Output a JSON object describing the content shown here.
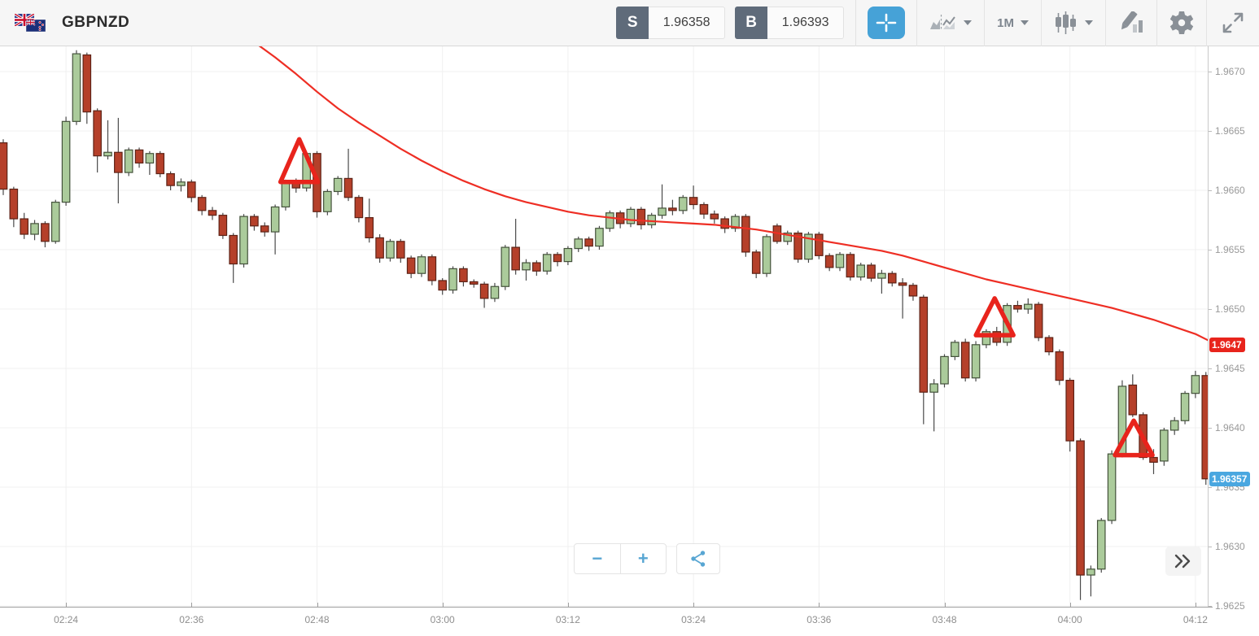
{
  "header": {
    "symbol": "GBPNZD",
    "sell": {
      "label": "S",
      "price": "1.96358"
    },
    "buy": {
      "label": "B",
      "price": "1.96393"
    },
    "interval": "1M"
  },
  "controls": {
    "zoom_out": "−",
    "zoom_in": "+"
  },
  "colors": {
    "up_fill": "#abcb9b",
    "up_border": "#44523b",
    "down_fill": "#b5402a",
    "down_border": "#5d2317",
    "wick": "#4a4a4a",
    "ma_line": "#ee2e24",
    "marker": "#e8241c",
    "tag_ma_bg": "#e8241c",
    "tag_last_bg": "#4aa7e0",
    "grid": "#f0f0f0",
    "accent_blue": "#46a2d7"
  },
  "chart_data": {
    "type": "candlestick",
    "symbol": "GBPNZD",
    "interval": "1M",
    "start_time": "02:18",
    "minutes_per_candle": 1,
    "price_base": 1.96,
    "unit": 0.0001,
    "price_ticks": [
      "1.9670",
      "1.9665",
      "1.9660",
      "1.9655",
      "1.9650",
      "1.9645",
      "1.9640",
      "1.9635",
      "1.9630",
      "1.9625"
    ],
    "time_ticks": [
      {
        "label": "02:24",
        "index": 6
      },
      {
        "label": "02:36",
        "index": 18
      },
      {
        "label": "02:48",
        "index": 30
      },
      {
        "label": "03:00",
        "index": 42
      },
      {
        "label": "03:12",
        "index": 54
      },
      {
        "label": "03:24",
        "index": 66
      },
      {
        "label": "03:36",
        "index": 78
      },
      {
        "label": "03:48",
        "index": 90
      },
      {
        "label": "04:00",
        "index": 102
      },
      {
        "label": "04:12",
        "index": 114
      }
    ],
    "candles": [
      [
        64.0,
        64.3,
        59.6,
        60.1
      ],
      [
        60.1,
        60.3,
        56.9,
        57.6
      ],
      [
        57.6,
        58.1,
        55.9,
        56.3
      ],
      [
        56.3,
        57.5,
        55.8,
        57.2
      ],
      [
        57.2,
        57.4,
        55.2,
        55.7
      ],
      [
        55.7,
        59.2,
        55.5,
        59.0
      ],
      [
        59.0,
        66.2,
        58.7,
        65.8
      ],
      [
        65.8,
        71.8,
        65.5,
        71.5
      ],
      [
        71.4,
        71.6,
        65.6,
        66.6
      ],
      [
        66.7,
        66.9,
        61.5,
        62.9
      ],
      [
        62.9,
        65.9,
        62.6,
        63.2
      ],
      [
        63.2,
        66.1,
        58.9,
        61.5
      ],
      [
        61.5,
        63.6,
        61.2,
        63.4
      ],
      [
        63.4,
        63.6,
        61.9,
        62.3
      ],
      [
        62.3,
        63.3,
        61.3,
        63.1
      ],
      [
        63.1,
        63.3,
        61.1,
        61.4
      ],
      [
        61.4,
        61.6,
        60.0,
        60.4
      ],
      [
        60.4,
        61.0,
        59.9,
        60.7
      ],
      [
        60.7,
        60.9,
        59.0,
        59.4
      ],
      [
        59.4,
        59.6,
        57.9,
        58.3
      ],
      [
        58.3,
        58.6,
        57.5,
        57.9
      ],
      [
        57.9,
        58.1,
        55.9,
        56.2
      ],
      [
        56.2,
        56.4,
        52.2,
        53.8
      ],
      [
        53.8,
        58.0,
        53.5,
        57.8
      ],
      [
        57.8,
        58.0,
        56.6,
        57.0
      ],
      [
        57.0,
        57.3,
        56.1,
        56.5
      ],
      [
        56.5,
        58.8,
        54.6,
        58.6
      ],
      [
        58.6,
        60.9,
        58.3,
        60.8
      ],
      [
        60.8,
        61.0,
        59.8,
        60.2
      ],
      [
        60.2,
        63.2,
        59.9,
        63.1
      ],
      [
        63.1,
        63.3,
        57.7,
        58.2
      ],
      [
        58.2,
        60.1,
        57.9,
        59.9
      ],
      [
        59.9,
        61.2,
        59.6,
        61.0
      ],
      [
        61.0,
        63.5,
        59.1,
        59.4
      ],
      [
        59.4,
        59.6,
        57.3,
        57.7
      ],
      [
        57.7,
        59.3,
        55.6,
        56.0
      ],
      [
        56.0,
        56.3,
        53.9,
        54.3
      ],
      [
        54.3,
        55.9,
        54.0,
        55.7
      ],
      [
        55.7,
        55.9,
        53.9,
        54.3
      ],
      [
        54.3,
        54.5,
        52.6,
        53.0
      ],
      [
        53.0,
        54.6,
        52.7,
        54.4
      ],
      [
        54.4,
        54.6,
        52.0,
        52.4
      ],
      [
        52.4,
        52.6,
        51.2,
        51.6
      ],
      [
        51.6,
        53.6,
        51.3,
        53.4
      ],
      [
        53.4,
        53.6,
        51.9,
        52.3
      ],
      [
        52.3,
        52.5,
        51.8,
        52.1
      ],
      [
        52.1,
        52.3,
        50.1,
        50.9
      ],
      [
        50.9,
        52.2,
        50.6,
        51.9
      ],
      [
        51.9,
        55.4,
        51.6,
        55.2
      ],
      [
        55.2,
        57.6,
        52.9,
        53.3
      ],
      [
        53.3,
        54.2,
        52.4,
        53.9
      ],
      [
        53.9,
        54.1,
        52.8,
        53.2
      ],
      [
        53.2,
        54.8,
        52.9,
        54.6
      ],
      [
        54.6,
        54.8,
        53.6,
        54.0
      ],
      [
        54.0,
        55.3,
        53.7,
        55.1
      ],
      [
        55.1,
        56.1,
        54.8,
        55.9
      ],
      [
        55.9,
        56.1,
        54.9,
        55.3
      ],
      [
        55.3,
        57.0,
        55.0,
        56.8
      ],
      [
        56.8,
        58.3,
        56.5,
        58.1
      ],
      [
        58.1,
        58.3,
        56.8,
        57.2
      ],
      [
        57.2,
        58.6,
        56.9,
        58.4
      ],
      [
        58.4,
        58.6,
        56.7,
        57.1
      ],
      [
        57.1,
        58.1,
        56.8,
        57.9
      ],
      [
        57.9,
        60.5,
        57.6,
        58.5
      ],
      [
        58.5,
        59.2,
        57.9,
        58.3
      ],
      [
        58.3,
        59.6,
        58.0,
        59.4
      ],
      [
        59.4,
        60.4,
        58.4,
        58.8
      ],
      [
        58.8,
        59.0,
        57.6,
        58.0
      ],
      [
        58.0,
        58.3,
        57.2,
        57.6
      ],
      [
        57.6,
        57.8,
        56.4,
        56.8
      ],
      [
        56.8,
        58.0,
        56.5,
        57.8
      ],
      [
        57.8,
        58.0,
        54.4,
        54.8
      ],
      [
        54.8,
        55.0,
        52.6,
        53.0
      ],
      [
        53.0,
        56.3,
        52.7,
        56.1
      ],
      [
        57.0,
        57.2,
        55.5,
        55.7
      ],
      [
        55.7,
        56.6,
        55.4,
        56.4
      ],
      [
        56.4,
        56.6,
        53.9,
        54.2
      ],
      [
        54.2,
        56.5,
        53.9,
        56.3
      ],
      [
        56.3,
        56.5,
        54.2,
        54.5
      ],
      [
        54.5,
        54.7,
        53.2,
        53.5
      ],
      [
        53.5,
        54.8,
        53.2,
        54.6
      ],
      [
        54.6,
        54.8,
        52.4,
        52.7
      ],
      [
        52.7,
        53.9,
        52.4,
        53.7
      ],
      [
        53.7,
        53.9,
        52.3,
        52.6
      ],
      [
        52.6,
        53.3,
        51.3,
        53.0
      ],
      [
        53.0,
        53.2,
        51.9,
        52.2
      ],
      [
        52.2,
        52.6,
        49.2,
        52.0
      ],
      [
        52.0,
        52.2,
        50.7,
        51.1
      ],
      [
        51.0,
        51.2,
        40.3,
        43.0
      ],
      [
        43.0,
        44.1,
        39.7,
        43.7
      ],
      [
        43.7,
        46.2,
        43.4,
        46.0
      ],
      [
        46.0,
        47.4,
        45.7,
        47.2
      ],
      [
        47.2,
        47.5,
        43.9,
        44.2
      ],
      [
        44.2,
        47.3,
        43.9,
        47.0
      ],
      [
        47.0,
        48.3,
        46.7,
        48.1
      ],
      [
        48.1,
        48.5,
        46.9,
        47.2
      ],
      [
        47.2,
        50.5,
        46.9,
        50.3
      ],
      [
        50.3,
        50.7,
        49.7,
        50.0
      ],
      [
        50.0,
        50.9,
        49.6,
        50.4
      ],
      [
        50.4,
        50.6,
        47.3,
        47.6
      ],
      [
        47.6,
        47.8,
        46.1,
        46.4
      ],
      [
        46.4,
        46.6,
        43.6,
        44.0
      ],
      [
        44.0,
        44.2,
        38.0,
        38.9
      ],
      [
        38.9,
        39.1,
        25.5,
        27.6
      ],
      [
        27.6,
        28.4,
        25.8,
        28.1
      ],
      [
        28.1,
        32.4,
        27.8,
        32.2
      ],
      [
        32.2,
        38.1,
        31.9,
        37.8
      ],
      [
        37.8,
        44.0,
        37.5,
        43.5
      ],
      [
        43.6,
        44.5,
        40.9,
        41.1
      ],
      [
        41.1,
        41.3,
        37.3,
        37.5
      ],
      [
        37.5,
        38.2,
        36.1,
        37.1
      ],
      [
        37.2,
        40.0,
        36.8,
        39.8
      ],
      [
        39.8,
        40.9,
        39.4,
        40.6
      ],
      [
        40.6,
        43.1,
        40.3,
        42.9
      ],
      [
        42.9,
        44.8,
        42.5,
        44.4
      ],
      [
        44.4,
        44.7,
        35.2,
        35.7
      ]
    ],
    "ma_line": {
      "name": "moving-average",
      "points": [
        [
          23.5,
          72.8
        ],
        [
          26,
          71.2
        ],
        [
          28,
          69.8
        ],
        [
          30,
          68.3
        ],
        [
          32,
          66.9
        ],
        [
          34,
          65.7
        ],
        [
          36,
          64.6
        ],
        [
          38,
          63.5
        ],
        [
          40,
          62.5
        ],
        [
          42,
          61.6
        ],
        [
          44,
          60.8
        ],
        [
          46,
          60.1
        ],
        [
          48,
          59.5
        ],
        [
          50,
          59.0
        ],
        [
          52,
          58.6
        ],
        [
          54,
          58.2
        ],
        [
          56,
          57.9
        ],
        [
          58,
          57.7
        ],
        [
          60,
          57.5
        ],
        [
          62,
          57.4
        ],
        [
          64,
          57.3
        ],
        [
          66,
          57.2
        ],
        [
          68,
          57.1
        ],
        [
          70,
          56.9
        ],
        [
          72,
          56.7
        ],
        [
          74,
          56.4
        ],
        [
          76,
          56.1
        ],
        [
          78,
          55.8
        ],
        [
          80,
          55.5
        ],
        [
          82,
          55.2
        ],
        [
          84,
          54.9
        ],
        [
          86,
          54.5
        ],
        [
          88,
          54.0
        ],
        [
          90,
          53.5
        ],
        [
          92,
          53.0
        ],
        [
          94,
          52.5
        ],
        [
          96,
          52.1
        ],
        [
          98,
          51.7
        ],
        [
          100,
          51.3
        ],
        [
          102,
          50.9
        ],
        [
          104,
          50.5
        ],
        [
          106,
          50.1
        ],
        [
          108,
          49.6
        ],
        [
          110,
          49.1
        ],
        [
          112,
          48.5
        ],
        [
          114,
          47.9
        ],
        [
          115.6,
          47.2
        ]
      ]
    },
    "markers": [
      {
        "index": 28.3,
        "apex": 64.3,
        "base": 60.7
      },
      {
        "index": 94.8,
        "apex": 50.9,
        "base": 47.8
      },
      {
        "index": 108.1,
        "apex": 40.6,
        "base": 37.7
      }
    ],
    "ma_price_tag": {
      "value": "1.9647"
    },
    "last_price_tag": {
      "value": "1.96357"
    }
  }
}
